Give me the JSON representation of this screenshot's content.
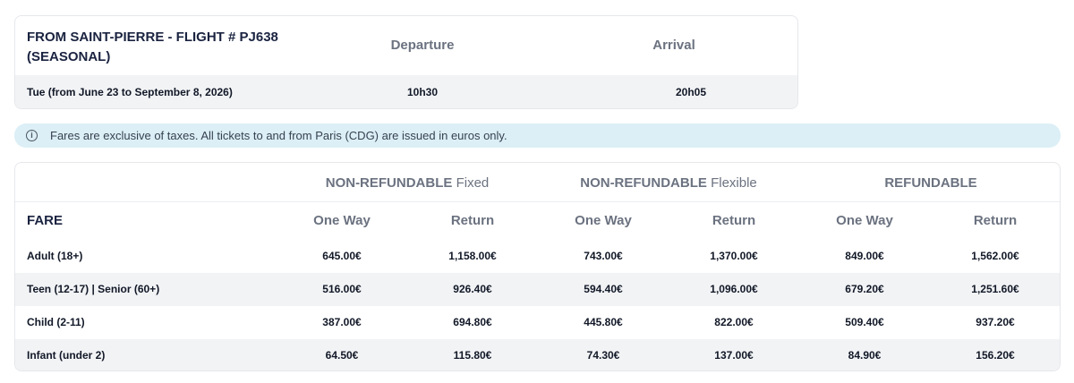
{
  "schedule": {
    "title": "FROM SAINT-PIERRE - FLIGHT # PJ638 (SEASONAL)",
    "col_departure": "Departure",
    "col_arrival": "Arrival",
    "row": {
      "day": "Tue (from June 23 to September 8, 2026)",
      "departure": "10h30",
      "arrival": "20h05"
    }
  },
  "info": {
    "icon": "info-icon",
    "text": "Fares are exclusive of taxes. All tickets to and from Paris (CDG) are issued in euros only."
  },
  "fares": {
    "fare_label": "FARE",
    "groups": [
      {
        "label_strong": "NON-REFUNDABLE",
        "label_rest": " Fixed"
      },
      {
        "label_strong": "NON-REFUNDABLE",
        "label_rest": " Flexible"
      },
      {
        "label_strong": "REFUNDABLE",
        "label_rest": ""
      }
    ],
    "sub_headers": [
      "One Way",
      "Return",
      "One Way",
      "Return",
      "One Way",
      "Return"
    ],
    "rows": [
      {
        "label": "Adult (18+)",
        "values": [
          "645.00€",
          "1,158.00€",
          "743.00€",
          "1,370.00€",
          "849.00€",
          "1,562.00€"
        ]
      },
      {
        "label": "Teen (12-17) | Senior (60+)",
        "values": [
          "516.00€",
          "926.40€",
          "594.40€",
          "1,096.00€",
          "679.20€",
          "1,251.60€"
        ]
      },
      {
        "label": "Child (2-11)",
        "values": [
          "387.00€",
          "694.80€",
          "445.80€",
          "822.00€",
          "509.40€",
          "937.20€"
        ]
      },
      {
        "label": "Infant (under 2)",
        "values": [
          "64.50€",
          "115.80€",
          "74.30€",
          "137.00€",
          "84.90€",
          "156.20€"
        ]
      }
    ]
  },
  "colors": {
    "heading": "#1a2340",
    "muted": "#6b7280",
    "stripe": "#f2f3f5",
    "banner": "#dceff6"
  }
}
